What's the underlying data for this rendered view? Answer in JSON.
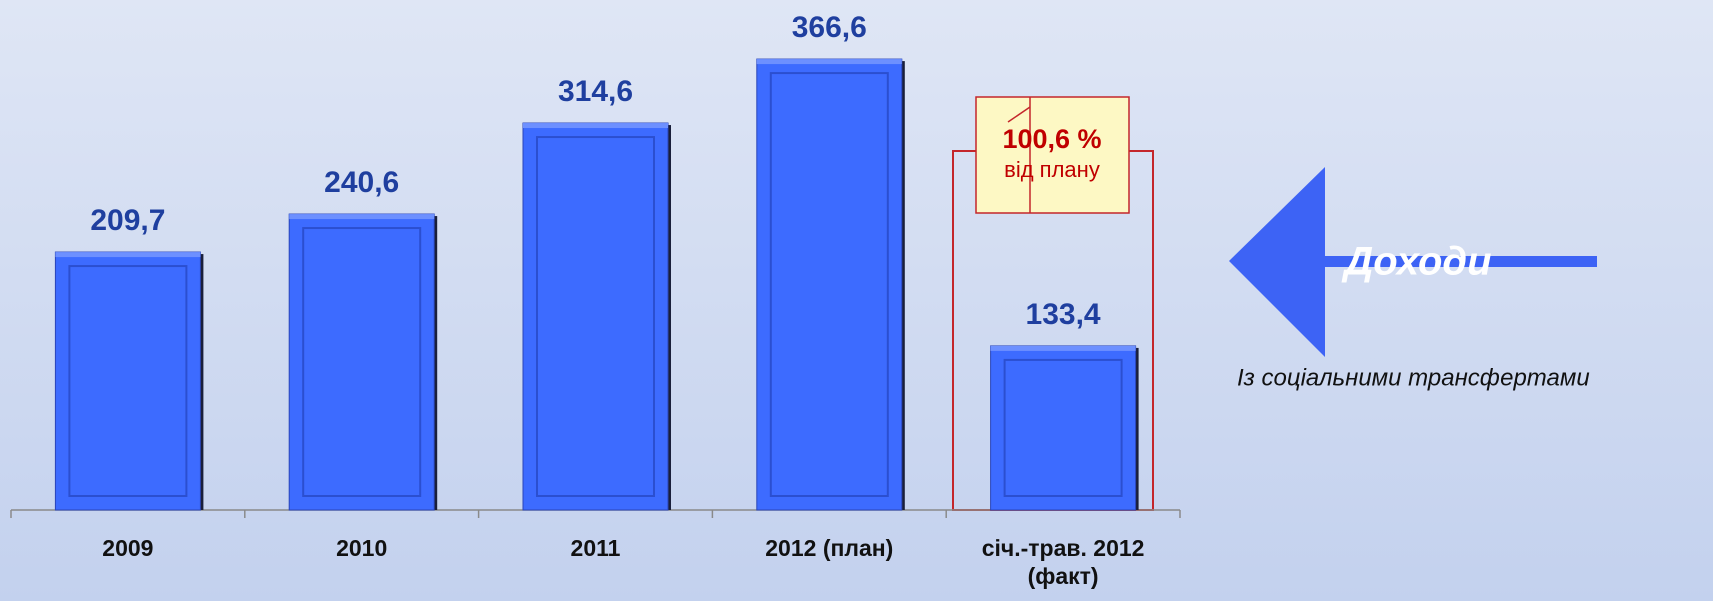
{
  "chart_data": {
    "type": "bar",
    "categories": [
      "2009",
      "2010",
      "2011",
      "2012 (план)",
      "січ.-трав. 2012 (факт)"
    ],
    "values": [
      209.7,
      240.6,
      314.6,
      366.6,
      133.4
    ],
    "value_labels": [
      "209,7",
      "240,6",
      "314,6",
      "366,6",
      "133,4"
    ],
    "color": "#3d6bff",
    "annotations": [
      "100,6 %",
      "від плану",
      "Доходи",
      "Із соціальними трансфертами"
    ]
  }
}
